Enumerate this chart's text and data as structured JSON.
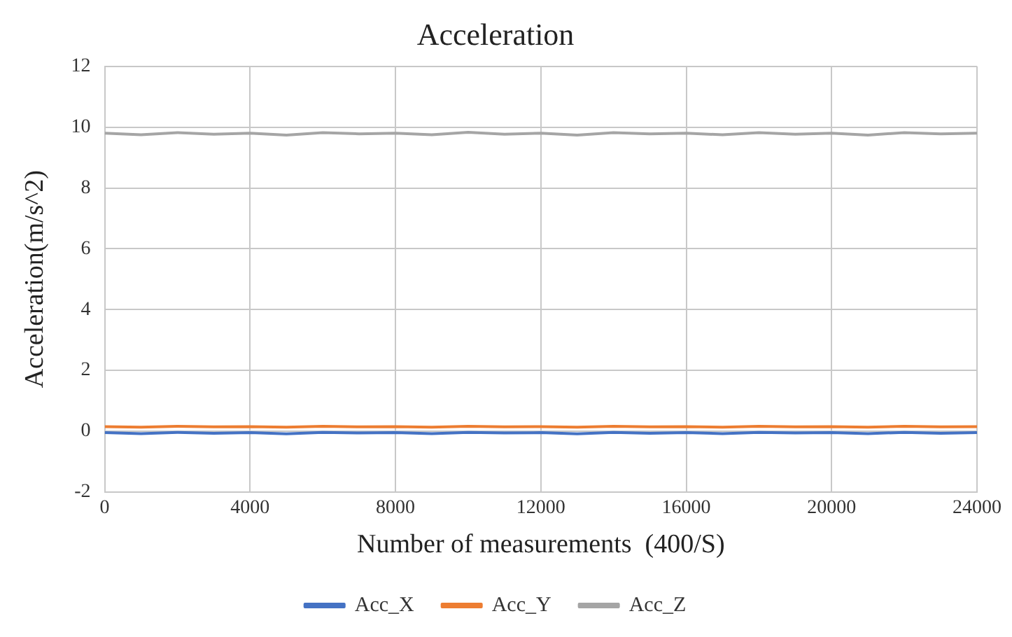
{
  "chart_data": {
    "type": "line",
    "title": "Acceleration",
    "xlabel": "Number of measurements  (400/S)",
    "ylabel": "Acceleration(m/s^2)",
    "x": [
      0,
      1000,
      2000,
      3000,
      4000,
      5000,
      6000,
      7000,
      8000,
      9000,
      10000,
      11000,
      12000,
      13000,
      14000,
      15000,
      16000,
      17000,
      18000,
      19000,
      20000,
      21000,
      22000,
      23000,
      24000
    ],
    "series": [
      {
        "name": "Acc_X",
        "color": "#4472c4",
        "values": [
          -0.05,
          -0.08,
          -0.04,
          -0.07,
          -0.05,
          -0.09,
          -0.04,
          -0.06,
          -0.05,
          -0.08,
          -0.04,
          -0.06,
          -0.05,
          -0.09,
          -0.04,
          -0.07,
          -0.05,
          -0.08,
          -0.04,
          -0.06,
          -0.05,
          -0.08,
          -0.04,
          -0.07,
          -0.05
        ]
      },
      {
        "name": "Acc_Y",
        "color": "#ed7d31",
        "values": [
          0.15,
          0.13,
          0.16,
          0.14,
          0.15,
          0.13,
          0.16,
          0.14,
          0.15,
          0.13,
          0.16,
          0.14,
          0.15,
          0.13,
          0.16,
          0.14,
          0.15,
          0.13,
          0.16,
          0.14,
          0.15,
          0.13,
          0.16,
          0.14,
          0.15
        ]
      },
      {
        "name": "Acc_Z",
        "color": "#a5a5a5",
        "values": [
          9.8,
          9.75,
          9.82,
          9.77,
          9.8,
          9.74,
          9.82,
          9.78,
          9.8,
          9.75,
          9.83,
          9.77,
          9.8,
          9.74,
          9.82,
          9.78,
          9.8,
          9.75,
          9.82,
          9.77,
          9.8,
          9.74,
          9.82,
          9.78,
          9.8
        ]
      }
    ],
    "xlim": [
      0,
      24000
    ],
    "xticks": [
      0,
      4000,
      8000,
      12000,
      16000,
      20000,
      24000
    ],
    "ylim": [
      -2,
      12
    ],
    "yticks": [
      -2,
      0,
      2,
      4,
      6,
      8,
      10,
      12
    ],
    "grid": true,
    "legend": "bottom",
    "marker": "none",
    "line_style": "solid"
  }
}
